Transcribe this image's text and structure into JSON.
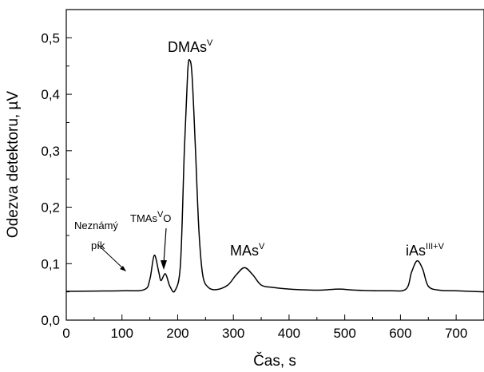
{
  "chart_data": {
    "type": "line",
    "title": "",
    "xlabel": "Čas, s",
    "ylabel": "Odezva detektoru, µV",
    "xlim": [
      0,
      750
    ],
    "ylim": [
      0,
      0.55
    ],
    "x_ticks": [
      0,
      100,
      200,
      300,
      400,
      500,
      600,
      700
    ],
    "x_tick_labels": [
      "0",
      "100",
      "200",
      "300",
      "400",
      "500",
      "600",
      "700"
    ],
    "y_ticks": [
      0,
      0.1,
      0.2,
      0.3,
      0.4,
      0.5
    ],
    "y_tick_labels": [
      "0,0",
      "0,1",
      "0,2",
      "0,3",
      "0,4",
      "0,5"
    ],
    "grid": false,
    "line_color": "#000000",
    "series": [
      {
        "x": [
          0,
          100,
          140,
          150,
          158,
          166,
          170,
          178,
          186,
          195,
          205,
          212,
          218,
          222,
          226,
          232,
          238,
          245,
          255,
          270,
          290,
          305,
          320,
          335,
          350,
          370,
          400,
          450,
          490,
          520,
          580,
          610,
          620,
          630,
          640,
          650,
          670,
          700,
          750
        ],
        "y": [
          0.051,
          0.052,
          0.054,
          0.072,
          0.115,
          0.085,
          0.07,
          0.082,
          0.06,
          0.052,
          0.1,
          0.3,
          0.44,
          0.46,
          0.43,
          0.3,
          0.16,
          0.08,
          0.058,
          0.054,
          0.062,
          0.08,
          0.093,
          0.08,
          0.062,
          0.058,
          0.055,
          0.053,
          0.055,
          0.053,
          0.052,
          0.055,
          0.085,
          0.105,
          0.09,
          0.06,
          0.053,
          0.052,
          0.05
        ]
      }
    ],
    "annotations": [
      {
        "text": "DMAs",
        "sup": "V",
        "x": 222,
        "y": 0.47
      },
      {
        "text": "MAs",
        "sup": "V",
        "x": 320,
        "y": 0.1
      },
      {
        "text": "iAs",
        "sup": "III+V",
        "x": 630,
        "y": 0.11
      },
      {
        "text": "TMAs",
        "sup": "V",
        "suffix": "O",
        "x": 180,
        "y": 0.16
      },
      {
        "text_lines": [
          "Neznámý",
          "pík"
        ],
        "x": 155,
        "y": 0.14
      }
    ]
  }
}
